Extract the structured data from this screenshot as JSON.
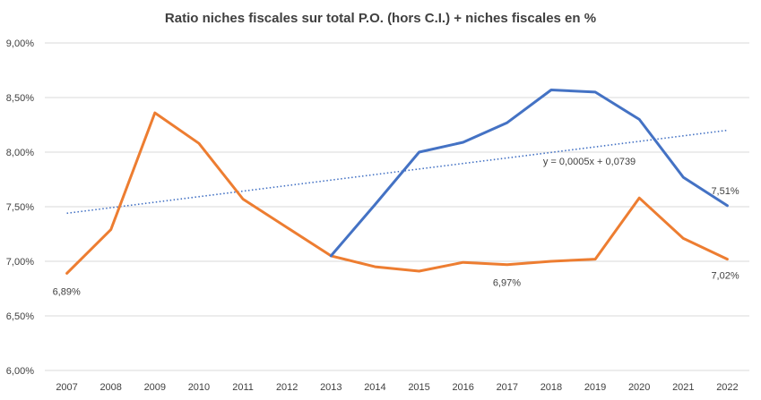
{
  "chart_data": {
    "type": "line",
    "title": "Ratio niches fiscales sur total P.O. (hors C.I.) + niches fiscales en %",
    "categories": [
      "2007",
      "2008",
      "2009",
      "2010",
      "2011",
      "2012",
      "2013",
      "2014",
      "2015",
      "2016",
      "2017",
      "2018",
      "2019",
      "2020",
      "2021",
      "2022"
    ],
    "ylim": [
      6.0,
      9.0
    ],
    "yticks": [
      6.0,
      6.5,
      7.0,
      7.5,
      8.0,
      8.5,
      9.0
    ],
    "ytick_labels": [
      "6,00%",
      "6,50%",
      "7,00%",
      "7,50%",
      "8,00%",
      "8,50%",
      "9,00%"
    ],
    "grid": true,
    "series": [
      {
        "color": "#4472C4",
        "values": [
          null,
          null,
          null,
          null,
          null,
          null,
          7.05,
          7.52,
          8.0,
          8.09,
          8.27,
          8.57,
          8.55,
          8.3,
          7.77,
          7.51
        ]
      },
      {
        "color": "#ED7D31",
        "values": [
          6.89,
          7.29,
          8.36,
          8.08,
          7.57,
          7.31,
          7.05,
          6.95,
          6.91,
          6.99,
          6.97,
          7.0,
          7.02,
          7.58,
          7.21,
          7.02
        ]
      }
    ],
    "trendline": {
      "color": "#4472C4",
      "style": "dotted",
      "label": "y = 0,0005x + 0,0739",
      "start_value": 7.44,
      "end_value": 8.2
    },
    "annotations": [
      {
        "text": "6,89%",
        "category": "2007"
      },
      {
        "text": "6,97%",
        "category": "2017"
      },
      {
        "text": "7,02%",
        "category": "2022"
      },
      {
        "text": "7,51%",
        "category": "2022"
      }
    ]
  }
}
